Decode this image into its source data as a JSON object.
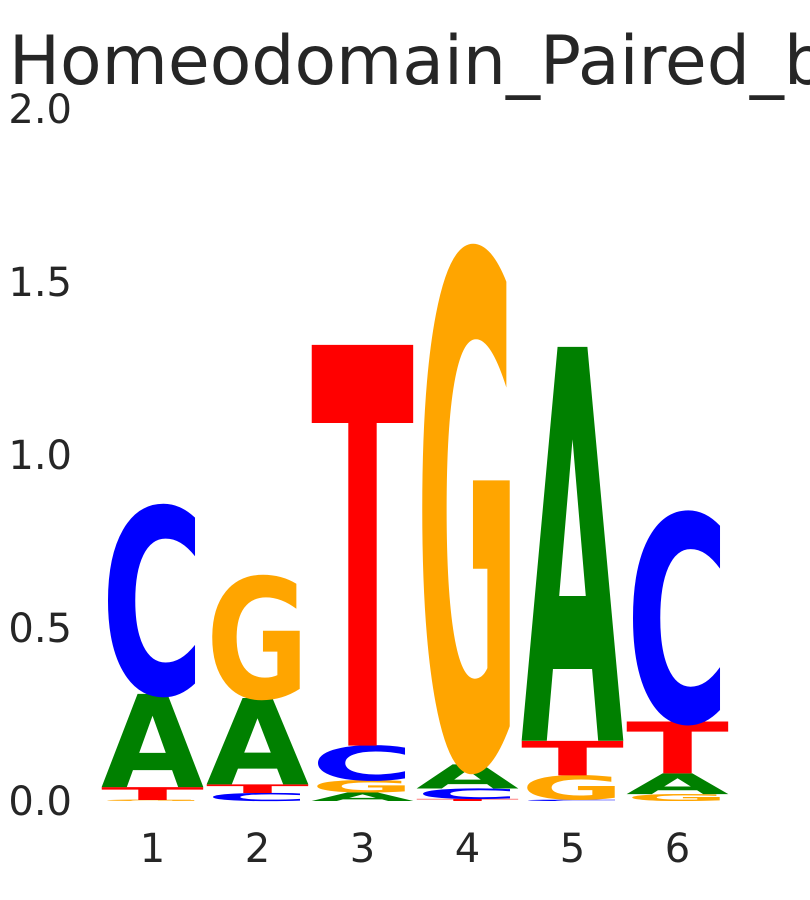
{
  "chart_data": {
    "type": "sequence_logo",
    "title": "Homeodomain_Paired_b",
    "ylim": [
      0,
      2.0
    ],
    "yticks": [
      "0.0",
      "0.5",
      "1.0",
      "1.5",
      "2.0"
    ],
    "categories": [
      "1",
      "2",
      "3",
      "4",
      "5",
      "6"
    ],
    "colors": {
      "A": "#008000",
      "C": "#0000ff",
      "G": "#ffa500",
      "T": "#ff0000"
    },
    "columns": [
      {
        "position": "1",
        "letters": [
          {
            "base": "G",
            "height": 0.003
          },
          {
            "base": "T",
            "height": 0.037
          },
          {
            "base": "A",
            "height": 0.27
          },
          {
            "base": "C",
            "height": 0.54
          }
        ]
      },
      {
        "position": "2",
        "letters": [
          {
            "base": "C",
            "height": 0.023
          },
          {
            "base": "T",
            "height": 0.025
          },
          {
            "base": "A",
            "height": 0.25
          },
          {
            "base": "G",
            "height": 0.35
          }
        ]
      },
      {
        "position": "3",
        "letters": [
          {
            "base": "A",
            "height": 0.025
          },
          {
            "base": "G",
            "height": 0.035
          },
          {
            "base": "C",
            "height": 0.1
          },
          {
            "base": "T",
            "height": 1.16
          }
        ]
      },
      {
        "position": "4",
        "letters": [
          {
            "base": "T",
            "height": 0.006
          },
          {
            "base": "C",
            "height": 0.03
          },
          {
            "base": "A",
            "height": 0.07
          },
          {
            "base": "G",
            "height": 1.48
          }
        ]
      },
      {
        "position": "5",
        "letters": [
          {
            "base": "C",
            "height": 0.004
          },
          {
            "base": "G",
            "height": 0.07
          },
          {
            "base": "T",
            "height": 0.1
          },
          {
            "base": "A",
            "height": 1.14
          }
        ]
      },
      {
        "position": "6",
        "letters": [
          {
            "base": "G",
            "height": 0.02
          },
          {
            "base": "A",
            "height": 0.06
          },
          {
            "base": "T",
            "height": 0.15
          },
          {
            "base": "C",
            "height": 0.6
          }
        ]
      }
    ]
  }
}
